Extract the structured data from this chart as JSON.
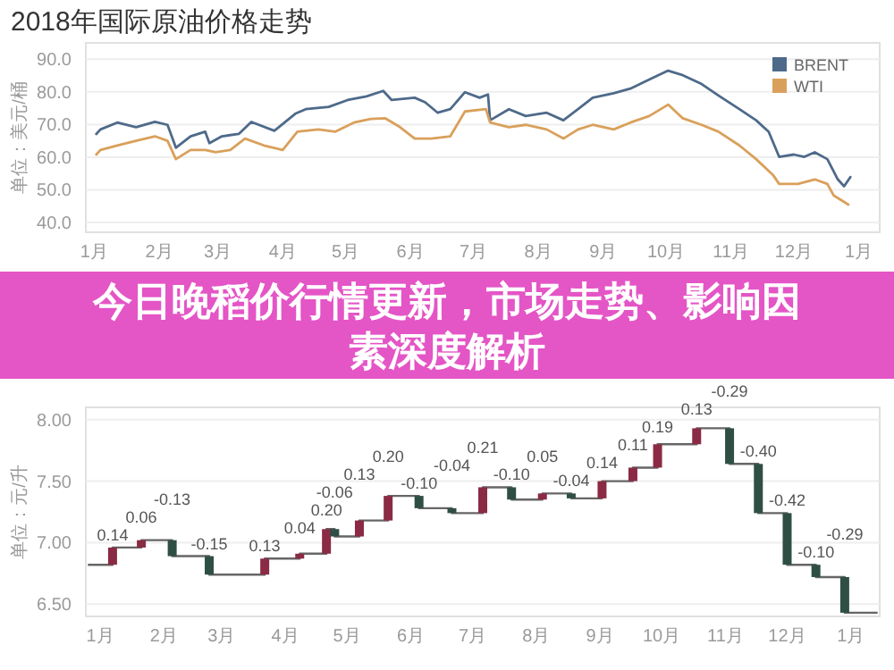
{
  "chart_data": [
    {
      "type": "line",
      "title": "2018年国际原油价格走势",
      "ylabel": "单位：美元/桶",
      "xlim": [
        "2017-12-28",
        "2019-01-11"
      ],
      "ylim": [
        37,
        95
      ],
      "xticks": [
        {
          "value": "2018-01-01",
          "label": "1月"
        },
        {
          "value": "2018-02-01",
          "label": "2月"
        },
        {
          "value": "2018-03-01",
          "label": "3月"
        },
        {
          "value": "2018-04-01",
          "label": "4月"
        },
        {
          "value": "2018-05-01",
          "label": "5月"
        },
        {
          "value": "2018-06-01",
          "label": "6月"
        },
        {
          "value": "2018-07-01",
          "label": "7月"
        },
        {
          "value": "2018-08-01",
          "label": "8月"
        },
        {
          "value": "2018-09-01",
          "label": "9月"
        },
        {
          "value": "2018-10-01",
          "label": "10月"
        },
        {
          "value": "2018-11-01",
          "label": "11月"
        },
        {
          "value": "2018-12-01",
          "label": "12月"
        },
        {
          "value": "2019-01-01",
          "label": "1月"
        }
      ],
      "yticks": [
        {
          "value": 40,
          "label": "40.0"
        },
        {
          "value": 50,
          "label": "50.0"
        },
        {
          "value": 60,
          "label": "60.0"
        },
        {
          "value": 70,
          "label": "70.0"
        },
        {
          "value": 80,
          "label": "80.0"
        },
        {
          "value": 90,
          "label": "90.0"
        }
      ],
      "grid": "y",
      "legend": "top right",
      "series": [
        {
          "name": "BRENT",
          "color": "#4e6a8a",
          "x": [
            "2018-01-02",
            "2018-01-04",
            "2018-01-12",
            "2018-01-21",
            "2018-01-30",
            "2018-02-05",
            "2018-02-09",
            "2018-02-16",
            "2018-02-23",
            "2018-02-25",
            "2018-03-03",
            "2018-03-11",
            "2018-03-17",
            "2018-03-28",
            "2018-04-07",
            "2018-04-12",
            "2018-04-23",
            "2018-05-02",
            "2018-05-11",
            "2018-05-19",
            "2018-05-23",
            "2018-06-03",
            "2018-06-08",
            "2018-06-14",
            "2018-06-20",
            "2018-06-27",
            "2018-07-04",
            "2018-07-08",
            "2018-07-09",
            "2018-07-18",
            "2018-07-26",
            "2018-08-05",
            "2018-08-13",
            "2018-08-20",
            "2018-08-27",
            "2018-09-06",
            "2018-09-14",
            "2018-09-23",
            "2018-10-02",
            "2018-10-09",
            "2018-10-18",
            "2018-10-26",
            "2018-11-05",
            "2018-11-13",
            "2018-11-19",
            "2018-11-24",
            "2018-12-01",
            "2018-12-06",
            "2018-12-11",
            "2018-12-17",
            "2018-12-22",
            "2018-12-25",
            "2018-12-28"
          ],
          "values": [
            67.1,
            68.5,
            70.6,
            69.2,
            70.8,
            69.9,
            62.9,
            66.4,
            67.8,
            64.3,
            66.4,
            67.1,
            70.8,
            68.1,
            73.3,
            74.7,
            75.4,
            77.5,
            78.6,
            80.3,
            77.5,
            78.2,
            76.8,
            73.6,
            74.7,
            79.9,
            78.2,
            79.2,
            71.3,
            74.7,
            72.6,
            73.6,
            71.3,
            74.7,
            78.2,
            79.6,
            81.0,
            83.8,
            86.5,
            85.1,
            82.4,
            78.9,
            74.7,
            71.3,
            67.8,
            60.1,
            60.8,
            60.1,
            61.5,
            59.4,
            53.2,
            51.1,
            53.9
          ]
        },
        {
          "name": "WTI",
          "color": "#d9a05b",
          "x": [
            "2018-01-02",
            "2018-01-04",
            "2018-01-12",
            "2018-01-21",
            "2018-01-30",
            "2018-02-05",
            "2018-02-09",
            "2018-02-16",
            "2018-02-23",
            "2018-02-28",
            "2018-03-07",
            "2018-03-14",
            "2018-03-23",
            "2018-04-01",
            "2018-04-08",
            "2018-04-18",
            "2018-04-26",
            "2018-05-05",
            "2018-05-13",
            "2018-05-20",
            "2018-05-27",
            "2018-06-03",
            "2018-06-11",
            "2018-06-20",
            "2018-06-27",
            "2018-07-07",
            "2018-07-09",
            "2018-07-18",
            "2018-07-26",
            "2018-08-05",
            "2018-08-13",
            "2018-08-20",
            "2018-08-27",
            "2018-09-06",
            "2018-09-14",
            "2018-09-23",
            "2018-10-02",
            "2018-10-09",
            "2018-10-18",
            "2018-10-26",
            "2018-11-05",
            "2018-11-13",
            "2018-11-21",
            "2018-11-24",
            "2018-12-03",
            "2018-12-11",
            "2018-12-17",
            "2018-12-20",
            "2018-12-25",
            "2018-12-27"
          ],
          "values": [
            60.8,
            62.2,
            63.6,
            65.0,
            66.4,
            65.0,
            59.4,
            62.2,
            62.2,
            61.5,
            62.2,
            65.7,
            63.6,
            62.2,
            67.8,
            68.5,
            67.8,
            70.6,
            71.7,
            71.9,
            69.2,
            65.7,
            65.7,
            66.4,
            74.0,
            74.7,
            70.6,
            69.2,
            69.9,
            68.5,
            65.7,
            68.5,
            69.9,
            68.5,
            70.6,
            72.6,
            76.1,
            71.9,
            69.9,
            67.8,
            63.6,
            59.4,
            54.6,
            51.8,
            51.8,
            53.2,
            51.8,
            48.3,
            46.3,
            45.5
          ]
        }
      ]
    },
    {
      "type": "other",
      "title": "今日晚稻价行情更新，市场走势、影响因素深度解析"
    },
    {
      "type": "bar",
      "ylabel": "单位：元/升",
      "xlim": [
        "2017-12-25",
        "2019-01-15"
      ],
      "ylim": [
        6.4,
        8.1
      ],
      "xticks": [
        {
          "value": "2018-01-01",
          "label": "1月"
        },
        {
          "value": "2018-02-01",
          "label": "2月"
        },
        {
          "value": "2018-03-01",
          "label": "3月"
        },
        {
          "value": "2018-04-01",
          "label": "4月"
        },
        {
          "value": "2018-05-01",
          "label": "5月"
        },
        {
          "value": "2018-06-01",
          "label": "6月"
        },
        {
          "value": "2018-07-01",
          "label": "7月"
        },
        {
          "value": "2018-08-01",
          "label": "8月"
        },
        {
          "value": "2018-09-01",
          "label": "9月"
        },
        {
          "value": "2018-10-01",
          "label": "10月"
        },
        {
          "value": "2018-11-01",
          "label": "11月"
        },
        {
          "value": "2018-12-01",
          "label": "12月"
        },
        {
          "value": "2019-01-01",
          "label": "1月"
        }
      ],
      "yticks": [
        {
          "value": 6.5,
          "label": "6.50"
        },
        {
          "value": 7,
          "label": "7.00"
        },
        {
          "value": 7.5,
          "label": "7.50"
        },
        {
          "value": 8,
          "label": "8.00"
        }
      ],
      "grid": "y",
      "series": [
        {
          "type": "step",
          "color": "#666666",
          "x": [
            "2017-12-26",
            "2018-01-07",
            "2018-01-21",
            "2018-02-05",
            "2018-02-23",
            "2018-03-22",
            "2018-04-08",
            "2018-04-21",
            "2018-04-25",
            "2018-05-07",
            "2018-05-21",
            "2018-06-05",
            "2018-06-21",
            "2018-07-06",
            "2018-07-20",
            "2018-08-04",
            "2018-08-18",
            "2018-09-02",
            "2018-09-17",
            "2018-09-29",
            "2018-10-18",
            "2018-11-03",
            "2018-11-17",
            "2018-12-01",
            "2018-12-15",
            "2018-12-29",
            "2019-01-14"
          ],
          "values": [
            6.82,
            6.96,
            7.02,
            6.89,
            6.74,
            6.87,
            6.91,
            7.11,
            7.05,
            7.18,
            7.38,
            7.28,
            7.24,
            7.45,
            7.35,
            7.4,
            7.36,
            7.5,
            7.61,
            7.8,
            7.93,
            7.64,
            7.24,
            6.82,
            6.72,
            6.43,
            6.43
          ]
        },
        {
          "type": "bar",
          "x": [
            "2018-01-07",
            "2018-01-21",
            "2018-02-05",
            "2018-02-23",
            "2018-03-22",
            "2018-04-08",
            "2018-04-21",
            "2018-04-25",
            "2018-05-07",
            "2018-05-21",
            "2018-06-05",
            "2018-06-21",
            "2018-07-06",
            "2018-07-20",
            "2018-08-04",
            "2018-08-18",
            "2018-09-02",
            "2018-09-17",
            "2018-09-29",
            "2018-10-18",
            "2018-11-03",
            "2018-11-17",
            "2018-12-01",
            "2018-12-15",
            "2018-12-29"
          ],
          "base": [
            6.82,
            6.96,
            7.02,
            6.89,
            6.74,
            6.87,
            6.91,
            7.11,
            7.05,
            7.18,
            7.38,
            7.28,
            7.24,
            7.45,
            7.35,
            7.4,
            7.36,
            7.5,
            7.61,
            7.8,
            7.93,
            7.64,
            7.24,
            6.82,
            6.72
          ],
          "values": [
            0.14,
            0.06,
            -0.13,
            -0.15,
            0.13,
            0.04,
            0.2,
            -0.06,
            0.13,
            0.2,
            -0.1,
            -0.04,
            0.21,
            -0.1,
            0.05,
            -0.04,
            0.14,
            0.11,
            0.19,
            0.13,
            -0.29,
            -0.4,
            -0.42,
            -0.1,
            -0.29
          ],
          "colors": [
            "#8b2a45",
            "#8b2a45",
            "#2f4f44",
            "#2f4f44",
            "#8b2a45",
            "#8b2a45",
            "#8b2a45",
            "#2f4f44",
            "#8b2a45",
            "#8b2a45",
            "#2f4f44",
            "#2f4f44",
            "#8b2a45",
            "#2f4f44",
            "#8b2a45",
            "#2f4f44",
            "#8b2a45",
            "#8b2a45",
            "#8b2a45",
            "#8b2a45",
            "#2f4f44",
            "#2f4f44",
            "#2f4f44",
            "#2f4f44",
            "#2f4f44"
          ],
          "value_labels": [
            "0.14",
            "0.06",
            "-0.13",
            "-0.15",
            "0.13",
            "0.04",
            "0.20",
            "-0.06",
            "0.13",
            "0.20",
            "-0.10",
            "-0.04",
            "0.21",
            "-0.10",
            "0.05",
            "-0.04",
            "0.14",
            "0.11",
            "0.19",
            "0.13",
            "-0.29",
            "-0.40",
            "-0.42",
            "-0.10",
            "-0.29"
          ]
        }
      ]
    }
  ]
}
